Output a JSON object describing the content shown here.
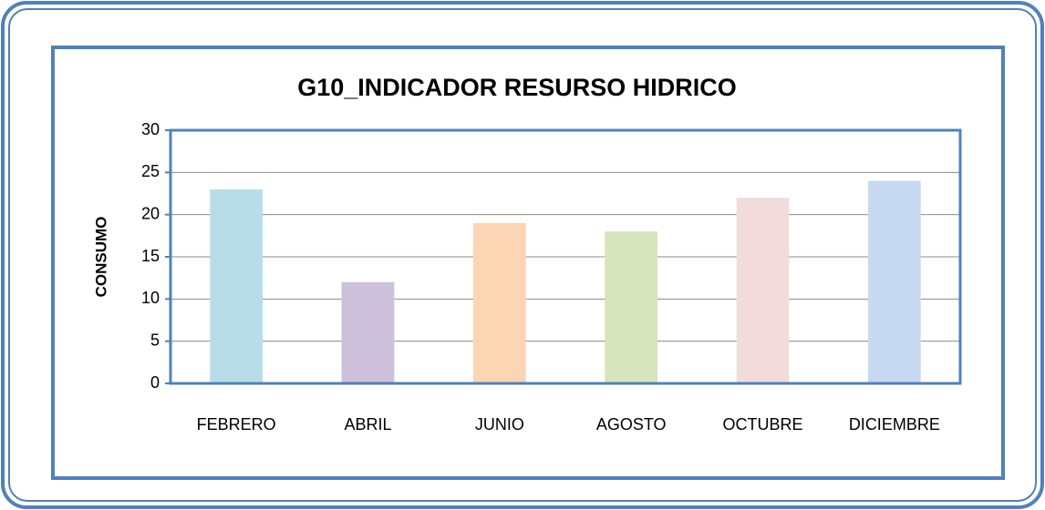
{
  "chart_data": {
    "type": "bar",
    "title": "G10_INDICADOR RESURSO HIDRICO",
    "y_label": "CONSUMO",
    "categories": [
      "FEBRERO",
      "ABRIL",
      "JUNIO",
      "AGOSTO",
      "OCTUBRE",
      "DICIEMBRE"
    ],
    "values": [
      23,
      12,
      19,
      18,
      22,
      24
    ],
    "colors": [
      "#b7dde8",
      "#ccc0da",
      "#fcd5b5",
      "#d7e4bd",
      "#f2dcdb",
      "#c6d9f1"
    ],
    "ylim": [
      0,
      30
    ],
    "yticks": [
      0,
      5,
      10,
      15,
      20,
      25,
      30
    ],
    "grid": true
  }
}
